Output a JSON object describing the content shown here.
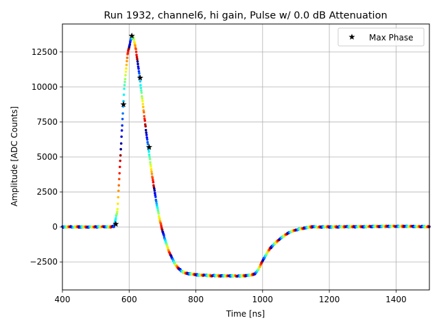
{
  "chart_data": {
    "type": "scatter",
    "title": "Run 1932, channel6, hi gain, Pulse w/ 0.0 dB Attenuation",
    "xlabel": "Time [ns]",
    "ylabel": "Amplitude [ADC Counts]",
    "xlim": [
      400,
      1500
    ],
    "ylim": [
      -4500,
      14500
    ],
    "xticks": [
      400,
      600,
      800,
      1000,
      1200,
      1400
    ],
    "yticks": [
      -2500,
      0,
      2500,
      5000,
      7500,
      10000,
      12500
    ],
    "grid": true,
    "legend": {
      "position": "top-right",
      "entries": [
        "Max Phase"
      ]
    },
    "colormap": "jet",
    "pulse_curve": {
      "x": [
        400,
        500,
        545,
        555,
        565,
        575,
        585,
        595,
        605,
        612,
        620,
        630,
        640,
        650,
        660,
        670,
        680,
        690,
        700,
        710,
        720,
        730,
        740,
        750,
        760,
        770,
        780,
        800,
        820,
        850,
        880,
        910,
        940,
        965,
        980,
        990,
        1000,
        1010,
        1020,
        1040,
        1060,
        1080,
        1100,
        1120,
        1140,
        1170,
        1200,
        1300,
        1400,
        1500
      ],
      "y": [
        0,
        0,
        0,
        50,
        1200,
        5500,
        9800,
        12300,
        13400,
        13600,
        12700,
        11000,
        9000,
        7000,
        5200,
        3500,
        2000,
        700,
        -300,
        -1100,
        -1800,
        -2300,
        -2750,
        -3000,
        -3200,
        -3300,
        -3350,
        -3420,
        -3450,
        -3480,
        -3500,
        -3500,
        -3500,
        -3450,
        -3300,
        -2900,
        -2400,
        -2000,
        -1600,
        -1100,
        -700,
        -400,
        -200,
        -100,
        0,
        0,
        0,
        20,
        50,
        20
      ]
    },
    "max_phase_points": {
      "name": "Max Phase",
      "x": [
        560,
        583,
        608,
        633,
        660
      ],
      "y": [
        200,
        8750,
        13650,
        10650,
        5700
      ]
    }
  }
}
